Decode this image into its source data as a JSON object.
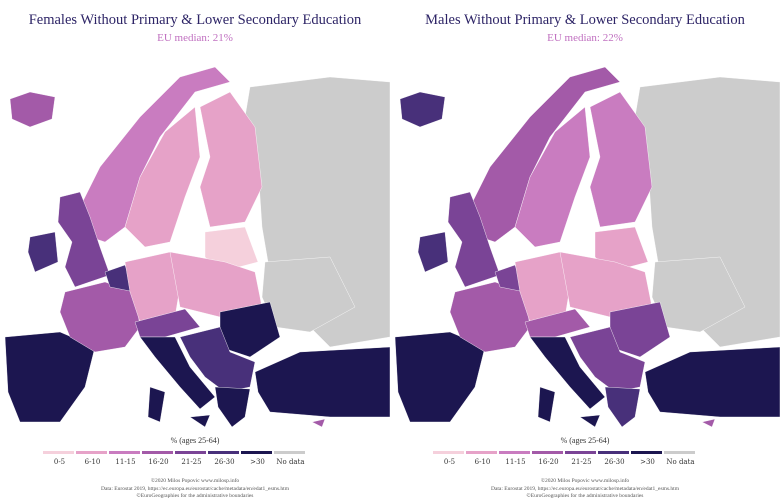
{
  "bins": [
    {
      "label": "0-5",
      "color": "#f5d0dc"
    },
    {
      "label": "6-10",
      "color": "#e6a2c8"
    },
    {
      "label": "11-15",
      "color": "#c97cc0"
    },
    {
      "label": "16-20",
      "color": "#a35aa8"
    },
    {
      "label": "21-25",
      "color": "#7a4496"
    },
    {
      "label": "26-30",
      "color": "#48307a"
    },
    {
      "label": ">30",
      "color": "#1c1650"
    },
    {
      "label": "No data",
      "color": "#cccccc"
    }
  ],
  "legend_title": "% (ages 25-64)",
  "footer": [
    "©2020 Milos Popovic www.milosp.info",
    "Data: Eurostat 2019, https://ec.europa.eu/eurostat/cache/metadata/en/edat1_esms.htm",
    "©EuroGeographies for the administrative boundaries"
  ],
  "maps": [
    {
      "title": "Females Without Primary & Lower Secondary Education",
      "subtitle": "EU median: 21%",
      "region_bins": {
        "iceland": 3,
        "ireland": 5,
        "uk": 4,
        "norway": 2,
        "sweden": 1,
        "finland": 1,
        "baltics": 0,
        "russia": 7,
        "iberia": 6,
        "france": 3,
        "benelux": 5,
        "central": 1,
        "poland": 1,
        "italy": 6,
        "alps": 4,
        "balkans": 5,
        "romania": 6,
        "greece": 6,
        "turkey": 6,
        "ukraine": 7,
        "cyprus": 3
      }
    },
    {
      "title": "Males Without Primary & Lower Secondary Education",
      "subtitle": "EU median: 22%",
      "region_bins": {
        "iceland": 5,
        "ireland": 5,
        "uk": 4,
        "norway": 3,
        "sweden": 2,
        "finland": 2,
        "baltics": 1,
        "russia": 7,
        "iberia": 6,
        "france": 3,
        "benelux": 4,
        "central": 1,
        "poland": 1,
        "italy": 6,
        "alps": 3,
        "balkans": 4,
        "romania": 4,
        "greece": 5,
        "turkey": 6,
        "ukraine": 7,
        "cyprus": 3
      }
    }
  ]
}
